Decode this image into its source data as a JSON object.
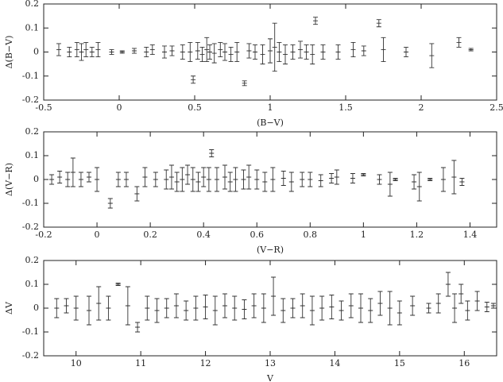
{
  "chart_data": [
    {
      "type": "errorbar",
      "x_label": "(B−V)",
      "y_label": "Δ(B−V)",
      "color": "#333333",
      "xlim": [
        -0.5,
        2.5
      ],
      "ylim": [
        -0.2,
        0.2
      ],
      "xticks": [
        -0.5,
        0,
        0.5,
        1,
        1.5,
        2,
        2.5
      ],
      "yticks": [
        -0.2,
        -0.1,
        0,
        0.1,
        0.2
      ],
      "x": [
        -0.4,
        -0.33,
        -0.28,
        -0.25,
        -0.22,
        -0.18,
        -0.14,
        -0.05,
        0.02,
        0.1,
        0.18,
        0.22,
        0.3,
        0.35,
        0.42,
        0.47,
        0.49,
        0.52,
        0.55,
        0.58,
        0.6,
        0.63,
        0.67,
        0.7,
        0.74,
        0.78,
        0.83,
        0.86,
        0.9,
        0.95,
        1.0,
        1.03,
        1.06,
        1.1,
        1.15,
        1.2,
        1.24,
        1.28,
        1.3,
        1.35,
        1.45,
        1.55,
        1.62,
        1.72,
        1.75,
        1.9,
        2.07,
        2.25,
        2.33
      ],
      "values": [
        0.01,
        0.0,
        0.01,
        0.0,
        0.01,
        0.0,
        0.01,
        0.0,
        0.0,
        0.005,
        0.0,
        0.01,
        0.0,
        0.005,
        0.0,
        0.0,
        -0.115,
        0.005,
        -0.01,
        0.01,
        0.0,
        -0.005,
        0.01,
        0.0,
        -0.01,
        0.0,
        -0.13,
        0.005,
        0.0,
        -0.01,
        0.005,
        0.02,
        0.0,
        -0.01,
        0.0,
        0.01,
        0.0,
        -0.01,
        0.13,
        0.0,
        0.0,
        0.01,
        0.005,
        0.12,
        0.01,
        0.0,
        -0.015,
        0.04,
        0.01
      ],
      "errors": [
        0.025,
        0.02,
        0.03,
        0.035,
        0.03,
        0.02,
        0.03,
        0.01,
        0.005,
        0.01,
        0.02,
        0.02,
        0.025,
        0.02,
        0.03,
        0.04,
        0.015,
        0.035,
        0.03,
        0.05,
        0.03,
        0.04,
        0.03,
        0.035,
        0.03,
        0.04,
        0.01,
        0.03,
        0.03,
        0.04,
        0.05,
        0.1,
        0.04,
        0.04,
        0.03,
        0.035,
        0.03,
        0.04,
        0.015,
        0.03,
        0.03,
        0.03,
        0.02,
        0.015,
        0.05,
        0.02,
        0.05,
        0.02,
        0.005
      ]
    },
    {
      "type": "errorbar",
      "x_label": "(V−R)",
      "y_label": "Δ(V−R)",
      "color": "#333333",
      "xlim": [
        -0.2,
        1.5
      ],
      "ylim": [
        -0.2,
        0.2
      ],
      "xticks": [
        -0.2,
        0,
        0.2,
        0.4,
        0.6,
        0.8,
        1,
        1.2,
        1.4
      ],
      "yticks": [
        -0.2,
        -0.1,
        0,
        0.1,
        0.2
      ],
      "x": [
        -0.17,
        -0.14,
        -0.11,
        -0.09,
        -0.06,
        -0.03,
        0.0,
        0.05,
        0.08,
        0.11,
        0.15,
        0.18,
        0.22,
        0.26,
        0.28,
        0.3,
        0.32,
        0.34,
        0.36,
        0.38,
        0.4,
        0.42,
        0.43,
        0.45,
        0.48,
        0.5,
        0.52,
        0.55,
        0.57,
        0.6,
        0.63,
        0.66,
        0.7,
        0.73,
        0.77,
        0.8,
        0.84,
        0.88,
        0.9,
        0.96,
        1.0,
        1.06,
        1.1,
        1.12,
        1.19,
        1.21,
        1.25,
        1.3,
        1.34,
        1.37
      ],
      "values": [
        0.0,
        0.01,
        0.0,
        0.03,
        0.0,
        0.01,
        0.0,
        -0.1,
        0.0,
        0.0,
        -0.06,
        0.01,
        0.0,
        0.0,
        0.01,
        -0.01,
        0.0,
        0.02,
        0.0,
        -0.01,
        0.01,
        0.0,
        0.11,
        0.0,
        0.01,
        -0.01,
        0.0,
        0.0,
        0.01,
        0.0,
        -0.01,
        0.0,
        0.005,
        -0.01,
        0.0,
        0.0,
        -0.005,
        0.005,
        0.01,
        0.005,
        0.02,
        0.0,
        -0.02,
        0.0,
        -0.01,
        -0.03,
        0.0,
        0.0,
        0.01,
        -0.01
      ],
      "errors": [
        0.02,
        0.025,
        0.03,
        0.06,
        0.03,
        0.02,
        0.05,
        0.02,
        0.03,
        0.03,
        0.03,
        0.04,
        0.03,
        0.04,
        0.05,
        0.04,
        0.05,
        0.04,
        0.05,
        0.04,
        0.04,
        0.05,
        0.015,
        0.05,
        0.05,
        0.04,
        0.05,
        0.04,
        0.05,
        0.04,
        0.04,
        0.05,
        0.03,
        0.04,
        0.03,
        0.03,
        0.025,
        0.02,
        0.03,
        0.02,
        0.005,
        0.02,
        0.05,
        0.005,
        0.03,
        0.06,
        0.005,
        0.05,
        0.07,
        0.015
      ]
    },
    {
      "type": "errorbar",
      "x_label": "V",
      "y_label": "ΔV",
      "color": "#333333",
      "xlim": [
        9.5,
        16.5
      ],
      "ylim": [
        -0.2,
        0.2
      ],
      "xticks": [
        10,
        11,
        12,
        13,
        14,
        15,
        16
      ],
      "yticks": [
        -0.2,
        -0.1,
        0,
        0.1,
        0.2
      ],
      "x": [
        9.7,
        9.85,
        10.0,
        10.2,
        10.35,
        10.5,
        10.65,
        10.8,
        10.95,
        11.1,
        11.25,
        11.4,
        11.55,
        11.7,
        11.85,
        12.0,
        12.15,
        12.3,
        12.45,
        12.6,
        12.75,
        12.9,
        13.05,
        13.2,
        13.35,
        13.5,
        13.65,
        13.8,
        13.95,
        14.1,
        14.25,
        14.4,
        14.55,
        14.7,
        14.85,
        15.0,
        15.2,
        15.45,
        15.6,
        15.75,
        15.85,
        15.95,
        16.05,
        16.2,
        16.35,
        16.45
      ],
      "values": [
        0.0,
        0.01,
        0.0,
        -0.01,
        0.02,
        0.0,
        0.1,
        0.01,
        -0.08,
        0.0,
        -0.01,
        0.0,
        0.01,
        -0.01,
        0.0,
        0.005,
        -0.01,
        0.01,
        0.0,
        -0.005,
        0.01,
        0.0,
        0.05,
        -0.01,
        0.0,
        0.01,
        -0.01,
        0.0,
        0.005,
        -0.01,
        0.01,
        0.0,
        -0.01,
        0.02,
        0.0,
        -0.02,
        0.01,
        0.0,
        0.02,
        0.1,
        0.0,
        0.06,
        -0.01,
        0.03,
        0.005,
        0.01
      ],
      "errors": [
        0.04,
        0.03,
        0.05,
        0.06,
        0.07,
        0.05,
        0.005,
        0.08,
        0.02,
        0.05,
        0.05,
        0.04,
        0.05,
        0.04,
        0.05,
        0.05,
        0.06,
        0.05,
        0.05,
        0.04,
        0.05,
        0.06,
        0.08,
        0.05,
        0.04,
        0.05,
        0.06,
        0.05,
        0.05,
        0.04,
        0.05,
        0.06,
        0.05,
        0.05,
        0.07,
        0.05,
        0.04,
        0.02,
        0.04,
        0.05,
        0.06,
        0.04,
        0.04,
        0.04,
        0.02,
        0.01
      ]
    }
  ]
}
